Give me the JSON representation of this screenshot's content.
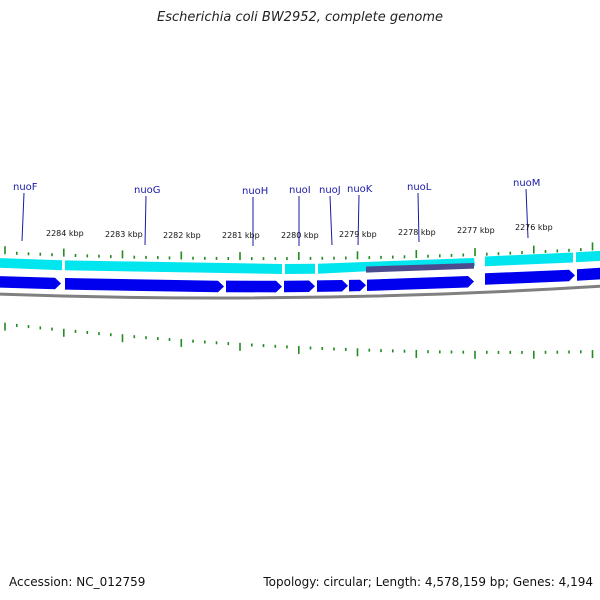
{
  "header": {
    "title": "Escherichia coli BW2952, complete genome"
  },
  "footer": {
    "accession": "Accession: NC_012759",
    "summary": "Topology: circular; Length: 4,578,159 bp; Genes: 4,194"
  },
  "map": {
    "gene_labels": [
      "nuoF",
      "nuoG",
      "nuoH",
      "nuoI",
      "nuoJ",
      "nuoK",
      "nuoL",
      "nuoM"
    ],
    "kbp_labels": [
      "2284 kbp",
      "2283 kbp",
      "2282 kbp",
      "2281 kbp",
      "2280 kbp",
      "2279 kbp",
      "2278 kbp",
      "2277 kbp",
      "2276 kbp"
    ],
    "colors": {
      "cds_outer": "#00e5ee",
      "cds_inner": "#0000ee",
      "gene_label": "#1a1aa6",
      "tick": "#228b22",
      "backbone": "#808080",
      "highlight": "#4b4b8f"
    }
  }
}
